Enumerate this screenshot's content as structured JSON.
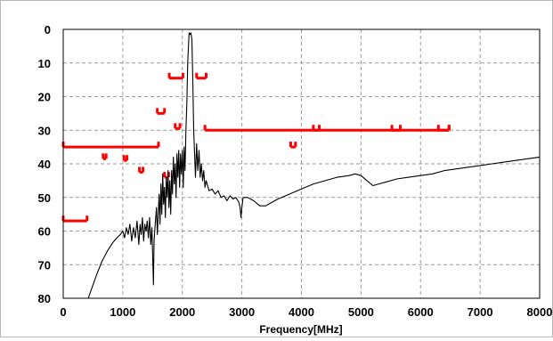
{
  "chart_data": {
    "type": "line",
    "xlabel": "Frequency[MHz]",
    "ylabel": "",
    "xlim": [
      0,
      8000
    ],
    "ylim": [
      0,
      80
    ],
    "y_inverted": true,
    "x_ticks": [
      "0",
      "1000",
      "2000",
      "3000",
      "4000",
      "5000",
      "6000",
      "7000",
      "8000"
    ],
    "y_ticks": [
      "0",
      "10",
      "20",
      "30",
      "40",
      "50",
      "60",
      "70",
      "80"
    ],
    "grid": "dashed",
    "colors": {
      "spectrum": "#000000",
      "mask": "#ff0000",
      "grid": "#9a9a9a"
    },
    "series": [
      {
        "points": [
          [
            420,
            80
          ],
          [
            480,
            77
          ],
          [
            560,
            73
          ],
          [
            650,
            69
          ],
          [
            740,
            66
          ],
          [
            830,
            63.5
          ],
          [
            900,
            62
          ],
          [
            960,
            61
          ],
          [
            1000,
            60
          ],
          [
            1030,
            62
          ],
          [
            1060,
            59
          ],
          [
            1090,
            61
          ],
          [
            1120,
            58
          ],
          [
            1150,
            63
          ],
          [
            1180,
            59
          ],
          [
            1210,
            62
          ],
          [
            1240,
            57
          ],
          [
            1270,
            64
          ],
          [
            1290,
            58
          ],
          [
            1310,
            61
          ],
          [
            1330,
            56
          ],
          [
            1350,
            63
          ],
          [
            1370,
            58
          ],
          [
            1390,
            60
          ],
          [
            1410,
            57
          ],
          [
            1430,
            62
          ],
          [
            1450,
            56
          ],
          [
            1470,
            64
          ],
          [
            1490,
            59
          ],
          [
            1505,
            69
          ],
          [
            1515,
            76
          ],
          [
            1525,
            63
          ],
          [
            1545,
            58
          ],
          [
            1565,
            53
          ],
          [
            1580,
            61
          ],
          [
            1595,
            55
          ],
          [
            1610,
            49
          ],
          [
            1625,
            58
          ],
          [
            1640,
            46
          ],
          [
            1655,
            55
          ],
          [
            1670,
            43
          ],
          [
            1685,
            52
          ],
          [
            1700,
            47
          ],
          [
            1715,
            56
          ],
          [
            1730,
            44
          ],
          [
            1745,
            50
          ],
          [
            1760,
            42
          ],
          [
            1775,
            53
          ],
          [
            1790,
            45
          ],
          [
            1805,
            55
          ],
          [
            1820,
            42
          ],
          [
            1835,
            49
          ],
          [
            1850,
            38
          ],
          [
            1865,
            46
          ],
          [
            1880,
            40
          ],
          [
            1895,
            50
          ],
          [
            1910,
            37
          ],
          [
            1925,
            44
          ],
          [
            1940,
            36
          ],
          [
            1955,
            47
          ],
          [
            1970,
            37
          ],
          [
            1985,
            43
          ],
          [
            2000,
            36
          ],
          [
            2015,
            47
          ],
          [
            2030,
            35
          ],
          [
            2045,
            42
          ],
          [
            2060,
            30
          ],
          [
            2075,
            22
          ],
          [
            2090,
            10
          ],
          [
            2105,
            4
          ],
          [
            2115,
            1
          ],
          [
            2130,
            1.5
          ],
          [
            2145,
            1
          ],
          [
            2160,
            3
          ],
          [
            2175,
            15
          ],
          [
            2190,
            30
          ],
          [
            2205,
            37
          ],
          [
            2220,
            44
          ],
          [
            2240,
            34
          ],
          [
            2260,
            42
          ],
          [
            2280,
            36
          ],
          [
            2300,
            44
          ],
          [
            2320,
            40
          ],
          [
            2340,
            45
          ],
          [
            2360,
            42
          ],
          [
            2380,
            47
          ],
          [
            2400,
            45
          ],
          [
            2450,
            48
          ],
          [
            2500,
            47.5
          ],
          [
            2550,
            49
          ],
          [
            2600,
            48
          ],
          [
            2650,
            50
          ],
          [
            2700,
            49.5
          ],
          [
            2750,
            51
          ],
          [
            2800,
            49.5
          ],
          [
            2850,
            50.5
          ],
          [
            2900,
            50
          ],
          [
            2950,
            51.5
          ],
          [
            2970,
            53
          ],
          [
            2985,
            56
          ],
          [
            3000,
            53
          ],
          [
            3020,
            50
          ],
          [
            3100,
            50
          ],
          [
            3200,
            51
          ],
          [
            3300,
            52.5
          ],
          [
            3400,
            52.5
          ],
          [
            3500,
            51.5
          ],
          [
            3600,
            50.5
          ],
          [
            3800,
            49
          ],
          [
            4000,
            47.5
          ],
          [
            4200,
            46
          ],
          [
            4400,
            45
          ],
          [
            4600,
            44
          ],
          [
            4800,
            43.5
          ],
          [
            4900,
            43
          ],
          [
            5000,
            43.5
          ],
          [
            5100,
            45
          ],
          [
            5200,
            46.5
          ],
          [
            5300,
            46
          ],
          [
            5400,
            45.5
          ],
          [
            5600,
            44.5
          ],
          [
            5800,
            44
          ],
          [
            6000,
            43.5
          ],
          [
            6200,
            43
          ],
          [
            6400,
            42
          ],
          [
            6600,
            41.5
          ],
          [
            6800,
            41
          ],
          [
            7000,
            40.5
          ],
          [
            7200,
            40
          ],
          [
            7400,
            39.5
          ],
          [
            7600,
            39
          ],
          [
            7800,
            38.5
          ],
          [
            8000,
            38
          ]
        ]
      }
    ],
    "mask_segments": [
      {
        "x1": 0,
        "x2": 400,
        "y": 57,
        "tick": "up"
      },
      {
        "x1": 0,
        "x2": 1600,
        "y": 35,
        "tick": "up"
      },
      {
        "x1": 670,
        "x2": 720,
        "y": 38.5,
        "tick": "up"
      },
      {
        "x1": 1020,
        "x2": 1070,
        "y": 39,
        "tick": "up"
      },
      {
        "x1": 1280,
        "x2": 1340,
        "y": 42.5,
        "tick": "up"
      },
      {
        "x1": 1580,
        "x2": 1700,
        "y": 25,
        "tick": "up"
      },
      {
        "x1": 1700,
        "x2": 1770,
        "y": 44,
        "tick": "up"
      },
      {
        "x1": 1780,
        "x2": 2010,
        "y": 14.5,
        "tick": "up"
      },
      {
        "x1": 1880,
        "x2": 1960,
        "y": 29.5,
        "tick": "up"
      },
      {
        "x1": 2240,
        "x2": 2400,
        "y": 14.5,
        "tick": "up"
      },
      {
        "x1": 2380,
        "x2": 6480,
        "y": 30,
        "tick": "up"
      },
      {
        "x1": 3820,
        "x2": 3900,
        "y": 35,
        "tick": "up"
      },
      {
        "x1": 4200,
        "x2": 4300,
        "y": 30,
        "tick": "up"
      },
      {
        "x1": 5520,
        "x2": 5660,
        "y": 30,
        "tick": "up"
      },
      {
        "x1": 6300,
        "x2": 6480,
        "y": 30,
        "tick": "up"
      }
    ]
  }
}
